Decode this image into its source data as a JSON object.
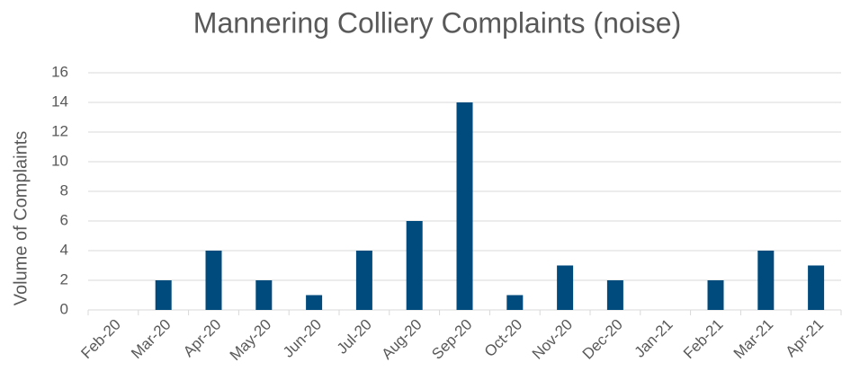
{
  "chart_data": {
    "type": "bar",
    "title": "Mannering Colliery Complaints (noise)",
    "y_label": "Volume of Complaints",
    "categories": [
      "Feb-20",
      "Mar-20",
      "Apr-20",
      "May-20",
      "Jun-20",
      "Jul-20",
      "Aug-20",
      "Sep-20",
      "Oct-20",
      "Nov-20",
      "Dec-20",
      "Jan-21",
      "Feb-21",
      "Mar-21",
      "Apr-21"
    ],
    "values": [
      0,
      2,
      4,
      2,
      1,
      4,
      6,
      14,
      1,
      3,
      2,
      0,
      2,
      4,
      3
    ],
    "color": "#004b7d",
    "ylim": [
      0,
      16
    ],
    "yticks": [
      0,
      2,
      4,
      6,
      8,
      10,
      12,
      14,
      16
    ],
    "grid": true
  }
}
